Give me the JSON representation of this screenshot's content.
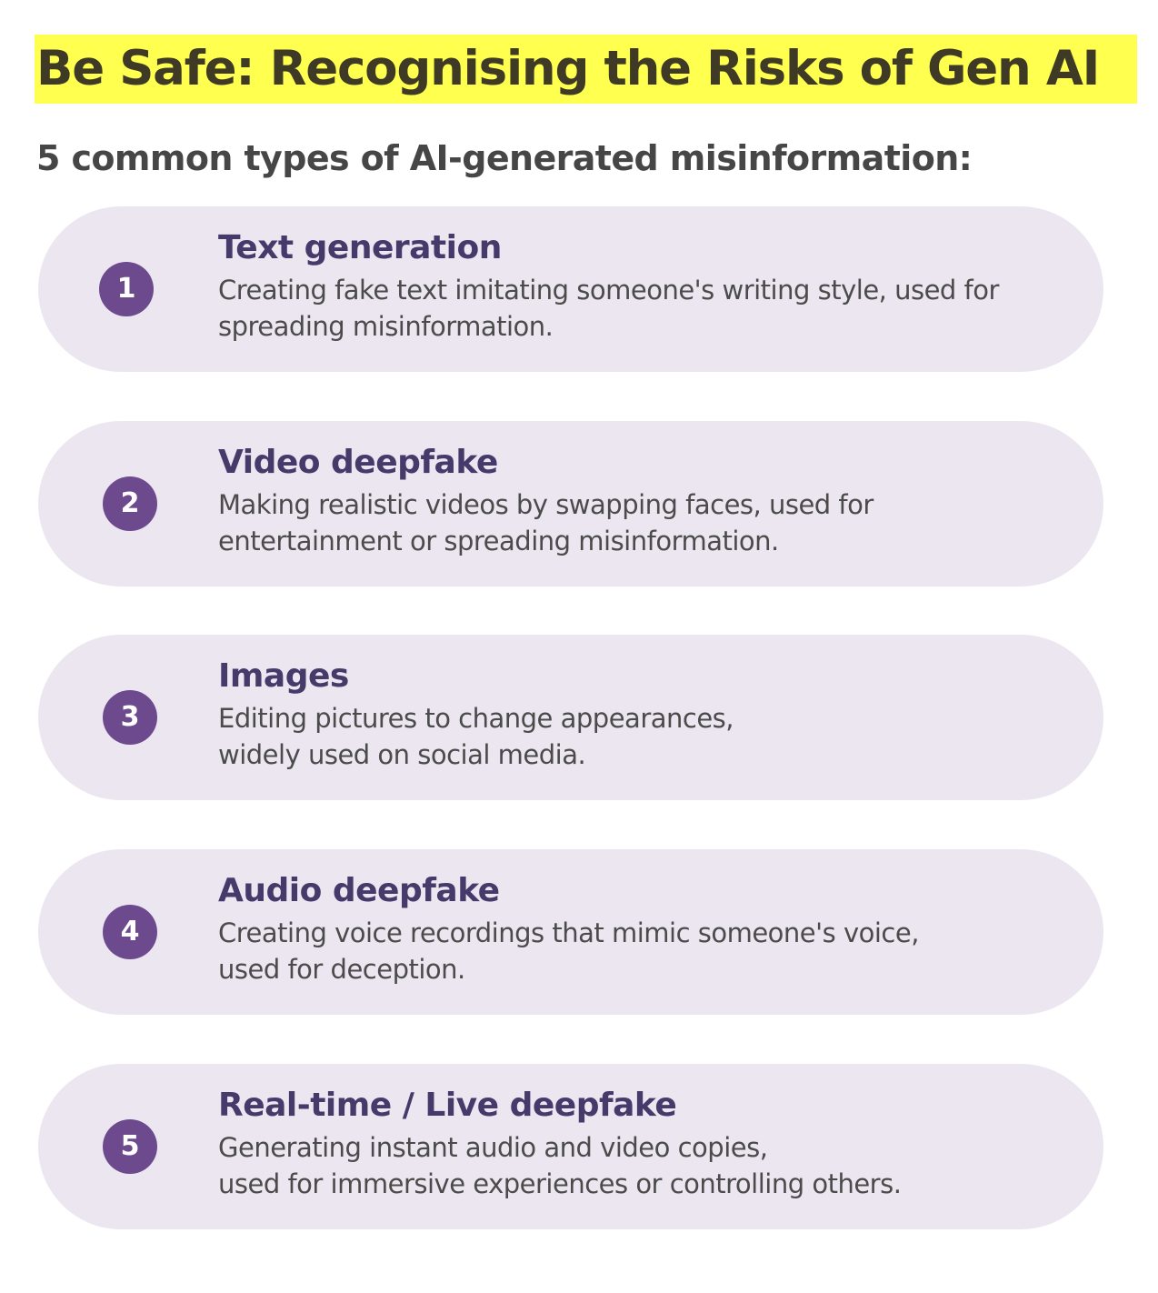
{
  "title": "Be Safe: Recognising the Risks of Gen AI",
  "subtitle": "5 common types of AI-generated misinformation:",
  "colors": {
    "title_highlight": "#ffff4f",
    "card_background": "#ebe6f0",
    "badge": "#6d4a8d",
    "card_title": "#453a6a"
  },
  "items": [
    {
      "number": "1",
      "title": "Text generation",
      "description": "Creating fake text imitating someone's writing style, used for\nspreading misinformation."
    },
    {
      "number": "2",
      "title": "Video deepfake",
      "description": "Making realistic videos by swapping faces, used for\nentertainment or spreading misinformation."
    },
    {
      "number": "3",
      "title": "Images",
      "description": "Editing pictures to change appearances,\nwidely used on social media."
    },
    {
      "number": "4",
      "title": "Audio deepfake",
      "description": "Creating voice recordings that mimic someone's voice,\nused for deception."
    },
    {
      "number": "5",
      "title": "Real-time / Live deepfake",
      "description": "Generating instant audio and video copies,\nused for immersive experiences or controlling others."
    }
  ]
}
